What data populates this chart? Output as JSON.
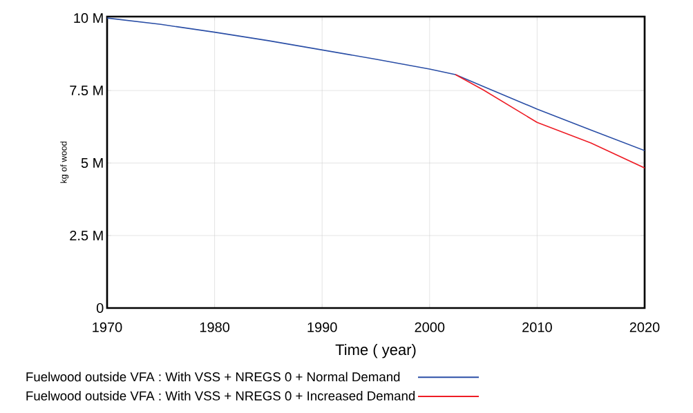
{
  "chart_data": {
    "type": "line",
    "xlabel": "Time (  year)",
    "ylabel": "kg of wood",
    "x": [
      1970,
      1975,
      1980,
      1985,
      1990,
      1995,
      2000,
      2002.4,
      2005,
      2010,
      2015,
      2020
    ],
    "series": [
      {
        "name": "Fuelwood outside VFA : With VSS + NREGS 0 + Normal Demand",
        "color": "#2a4ea6",
        "values": [
          10000000,
          9780000,
          9510000,
          9220000,
          8900000,
          8580000,
          8240000,
          8050000,
          7640000,
          6860000,
          6140000,
          5430000
        ]
      },
      {
        "name": "Fuelwood outside VFA : With VSS + NREGS 0 + Increased Demand",
        "color": "#ee1c25",
        "values": [
          null,
          null,
          null,
          null,
          null,
          null,
          null,
          8050000,
          7520000,
          6400000,
          5690000,
          4830000
        ]
      }
    ],
    "xlim": [
      1970,
      2020
    ],
    "ylim": [
      0,
      10050000
    ],
    "xticks": [
      1970,
      1980,
      1990,
      2000,
      2010,
      2020
    ],
    "yticks": [
      {
        "value": 0,
        "label": "0"
      },
      {
        "value": 2500000,
        "label": "2.5 M"
      },
      {
        "value": 5000000,
        "label": "5 M"
      },
      {
        "value": 7500000,
        "label": "7.5 M"
      },
      {
        "value": 10000000,
        "label": "10 M"
      }
    ],
    "grid": true,
    "legend": "bottom"
  }
}
